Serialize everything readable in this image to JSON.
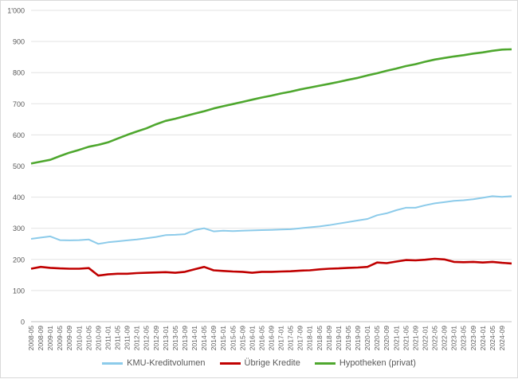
{
  "chart_data": {
    "type": "line",
    "title": "",
    "xlabel": "",
    "ylabel": "",
    "ylim": [
      0,
      1000
    ],
    "y_ticks": [
      "0",
      "100",
      "200",
      "300",
      "400",
      "500",
      "600",
      "700",
      "800",
      "900",
      "1'000"
    ],
    "grid": true,
    "legend_position": "bottom",
    "x_tick_labels": [
      "2008-05",
      "2008-09",
      "2009-01",
      "2009-05",
      "2009-09",
      "2010-01",
      "2010-05",
      "2010-09",
      "2011-01",
      "2011-05",
      "2011-09",
      "2012-01",
      "2012-05",
      "2012-09",
      "2013-01",
      "2013-05",
      "2013-09",
      "2014-01",
      "2014-05",
      "2014-09",
      "2015-01",
      "2015-05",
      "2015-09",
      "2016-01",
      "2016-05",
      "2016-09",
      "2017-01",
      "2017-05",
      "2017-09",
      "2018-01",
      "2018-05",
      "2018-09",
      "2019-01",
      "2019-05",
      "2019-09",
      "2020-01",
      "2020-05",
      "2020-09",
      "2021-01",
      "2021-05",
      "2021-09",
      "2022-01",
      "2022-05",
      "2022-09",
      "2023-01",
      "2023-05",
      "2023-09",
      "2024-01",
      "2024-05",
      "2024-09"
    ],
    "x": [
      "2008-05",
      "2008-09",
      "2009-01",
      "2009-05",
      "2009-09",
      "2010-01",
      "2010-05",
      "2010-09",
      "2011-01",
      "2011-05",
      "2011-09",
      "2012-01",
      "2012-05",
      "2012-09",
      "2013-01",
      "2013-05",
      "2013-09",
      "2014-01",
      "2014-05",
      "2014-09",
      "2015-01",
      "2015-05",
      "2015-09",
      "2016-01",
      "2016-05",
      "2016-09",
      "2017-01",
      "2017-05",
      "2017-09",
      "2018-01",
      "2018-05",
      "2018-09",
      "2019-01",
      "2019-05",
      "2019-09",
      "2020-01",
      "2020-05",
      "2020-09",
      "2021-01",
      "2021-05",
      "2021-09",
      "2022-01",
      "2022-05",
      "2022-09",
      "2023-01",
      "2023-05",
      "2023-09",
      "2024-01",
      "2024-05",
      "2024-09",
      "2024-12"
    ],
    "series": [
      {
        "name": "KMU-Kreditvolumen",
        "color": "#8ccbea",
        "values": [
          266,
          270,
          274,
          262,
          261,
          262,
          264,
          250,
          255,
          258,
          261,
          264,
          268,
          272,
          278,
          279,
          281,
          294,
          300,
          290,
          292,
          291,
          292,
          293,
          294,
          295,
          296,
          297,
          300,
          303,
          306,
          310,
          315,
          320,
          325,
          330,
          342,
          348,
          358,
          366,
          366,
          374,
          380,
          384,
          388,
          390,
          393,
          398,
          403,
          401,
          403
        ]
      },
      {
        "name": "Übrige Kredite",
        "color": "#c00000",
        "values": [
          170,
          176,
          173,
          171,
          170,
          170,
          172,
          148,
          152,
          154,
          154,
          156,
          157,
          158,
          159,
          157,
          160,
          168,
          176,
          165,
          163,
          161,
          160,
          157,
          160,
          160,
          161,
          162,
          164,
          165,
          168,
          170,
          171,
          173,
          174,
          176,
          190,
          188,
          193,
          198,
          197,
          199,
          202,
          200,
          192,
          191,
          192,
          190,
          192,
          189,
          187
        ]
      },
      {
        "name": "Hypotheken (privat)",
        "color": "#4ea72e",
        "values": [
          508,
          514,
          520,
          532,
          543,
          552,
          562,
          568,
          576,
          588,
          600,
          611,
          621,
          634,
          645,
          652,
          660,
          668,
          676,
          685,
          692,
          699,
          706,
          713,
          720,
          726,
          733,
          739,
          746,
          752,
          758,
          764,
          770,
          777,
          783,
          791,
          798,
          806,
          813,
          821,
          827,
          835,
          842,
          847,
          852,
          856,
          861,
          865,
          870,
          874,
          875
        ]
      }
    ]
  }
}
